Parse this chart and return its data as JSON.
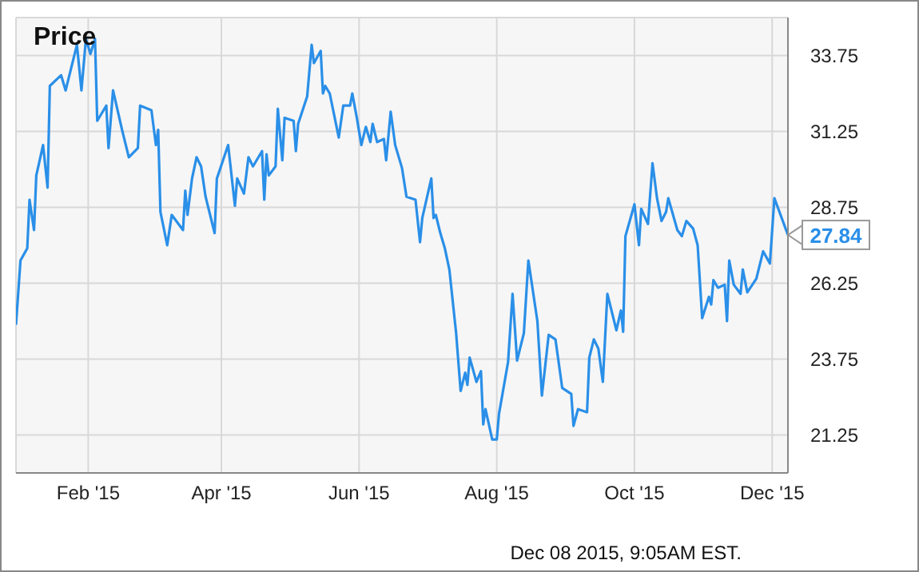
{
  "chart_data": {
    "type": "line",
    "title": "Price",
    "grid": true,
    "marker": "none",
    "xlim": [
      "2014-12-31",
      "2015-12-08"
    ],
    "ylim": [
      20,
      35
    ],
    "xticks": [
      {
        "value": "2015-02-01",
        "label": "Feb '15"
      },
      {
        "value": "2015-04-01",
        "label": "Apr '15"
      },
      {
        "value": "2015-06-01",
        "label": "Jun '15"
      },
      {
        "value": "2015-08-01",
        "label": "Aug '15"
      },
      {
        "value": "2015-10-01",
        "label": "Oct '15"
      },
      {
        "value": "2015-12-01",
        "label": "Dec '15"
      }
    ],
    "yticks": [
      21.25,
      23.75,
      26.25,
      28.75,
      31.25,
      33.75
    ],
    "annotations": [
      {
        "text": "27.84",
        "x": "2015-12-08",
        "y": 27.84
      },
      "Dec 08 2015, 9:05AM EST."
    ],
    "series": [
      {
        "color": "#2a8fe8",
        "x": [
          "2014-12-31",
          "2015-01-02",
          "2015-01-05",
          "2015-01-06",
          "2015-01-08",
          "2015-01-09",
          "2015-01-12",
          "2015-01-14",
          "2015-01-15",
          "2015-01-20",
          "2015-01-22",
          "2015-01-27",
          "2015-01-29",
          "2015-01-31",
          "2015-02-02",
          "2015-02-04",
          "2015-02-05",
          "2015-02-09",
          "2015-02-10",
          "2015-02-12",
          "2015-02-16",
          "2015-02-19",
          "2015-02-23",
          "2015-02-24",
          "2015-03-01",
          "2015-03-03",
          "2015-03-04",
          "2015-03-05",
          "2015-03-08",
          "2015-03-10",
          "2015-03-15",
          "2015-03-16",
          "2015-03-17",
          "2015-03-19",
          "2015-03-21",
          "2015-03-23",
          "2015-03-25",
          "2015-03-29",
          "2015-03-30",
          "2015-04-04",
          "2015-04-07",
          "2015-04-08",
          "2015-04-11",
          "2015-04-13",
          "2015-04-15",
          "2015-04-19",
          "2015-04-20",
          "2015-04-21",
          "2015-04-22",
          "2015-04-25",
          "2015-04-26",
          "2015-04-28",
          "2015-04-29",
          "2015-05-03",
          "2015-05-04",
          "2015-05-05",
          "2015-05-09",
          "2015-05-11",
          "2015-05-12",
          "2015-05-15",
          "2015-05-16",
          "2015-05-17",
          "2015-05-19",
          "2015-05-23",
          "2015-05-25",
          "2015-05-28",
          "2015-05-29",
          "2015-05-31",
          "2015-06-02",
          "2015-06-04",
          "2015-06-06",
          "2015-06-07",
          "2015-06-09",
          "2015-06-12",
          "2015-06-13",
          "2015-06-15",
          "2015-06-17",
          "2015-06-20",
          "2015-06-22",
          "2015-06-26",
          "2015-06-28",
          "2015-06-29",
          "2015-07-03",
          "2015-07-04",
          "2015-07-05",
          "2015-07-07",
          "2015-07-09",
          "2015-07-11",
          "2015-07-14",
          "2015-07-16",
          "2015-07-18",
          "2015-07-19",
          "2015-07-20",
          "2015-07-23",
          "2015-07-25",
          "2015-07-26",
          "2015-07-27",
          "2015-07-30",
          "2015-08-01",
          "2015-08-02",
          "2015-08-06",
          "2015-08-08",
          "2015-08-10",
          "2015-08-13",
          "2015-08-15",
          "2015-08-19",
          "2015-08-21",
          "2015-08-24",
          "2015-08-27",
          "2015-08-30",
          "2015-09-03",
          "2015-09-04",
          "2015-09-06",
          "2015-09-10",
          "2015-09-11",
          "2015-09-13",
          "2015-09-15",
          "2015-09-17",
          "2015-09-19",
          "2015-09-23",
          "2015-09-25",
          "2015-09-26",
          "2015-09-27",
          "2015-10-01",
          "2015-10-03",
          "2015-10-04",
          "2015-10-07",
          "2015-10-09",
          "2015-10-11",
          "2015-10-13",
          "2015-10-15",
          "2015-10-16",
          "2015-10-20",
          "2015-10-22",
          "2015-10-24",
          "2015-10-27",
          "2015-10-29",
          "2015-10-31",
          "2015-11-03",
          "2015-11-04",
          "2015-11-05",
          "2015-11-07",
          "2015-11-10",
          "2015-11-11",
          "2015-11-12",
          "2015-11-14",
          "2015-11-17",
          "2015-11-18",
          "2015-11-20",
          "2015-11-24",
          "2015-11-27",
          "2015-11-30",
          "2015-12-02",
          "2015-12-08"
        ],
        "values": [
          24.88,
          27.0,
          27.4,
          29.0,
          28.0,
          29.8,
          30.8,
          29.4,
          32.75,
          33.1,
          32.6,
          34.1,
          32.6,
          34.3,
          33.8,
          34.3,
          31.6,
          32.1,
          30.7,
          32.6,
          31.3,
          30.4,
          30.7,
          32.1,
          31.95,
          30.8,
          31.3,
          28.6,
          27.5,
          28.5,
          28.0,
          29.3,
          28.5,
          29.7,
          30.4,
          30.1,
          29.1,
          27.9,
          29.7,
          30.8,
          28.8,
          29.7,
          29.2,
          30.4,
          30.1,
          30.6,
          29.0,
          30.5,
          29.8,
          30.1,
          32.0,
          30.3,
          31.7,
          31.6,
          30.6,
          31.5,
          32.4,
          34.1,
          33.5,
          33.9,
          32.5,
          32.75,
          32.5,
          31.05,
          32.1,
          32.1,
          32.5,
          31.7,
          30.8,
          31.4,
          30.9,
          31.5,
          30.9,
          31.0,
          30.3,
          31.9,
          30.8,
          30.05,
          29.1,
          29.0,
          27.6,
          28.4,
          29.7,
          28.4,
          28.5,
          27.9,
          27.4,
          26.7,
          24.6,
          22.7,
          23.3,
          22.9,
          23.8,
          23.0,
          23.35,
          21.6,
          22.1,
          21.1,
          21.1,
          21.95,
          23.65,
          25.9,
          23.7,
          24.6,
          27.0,
          25.0,
          22.55,
          24.55,
          24.4,
          22.8,
          22.6,
          21.55,
          22.1,
          22.0,
          23.8,
          24.4,
          24.1,
          23.0,
          25.9,
          24.7,
          25.35,
          24.65,
          27.8,
          28.85,
          27.5,
          28.7,
          28.2,
          30.2,
          29.05,
          28.3,
          28.6,
          29.05,
          28.0,
          27.8,
          28.3,
          28.05,
          27.5,
          25.1,
          25.8,
          25.55,
          26.35,
          26.1,
          26.2,
          25.0,
          27.0,
          26.2,
          25.9,
          26.7,
          25.95,
          26.4,
          27.3,
          26.9,
          29.05,
          27.84
        ]
      }
    ]
  }
}
